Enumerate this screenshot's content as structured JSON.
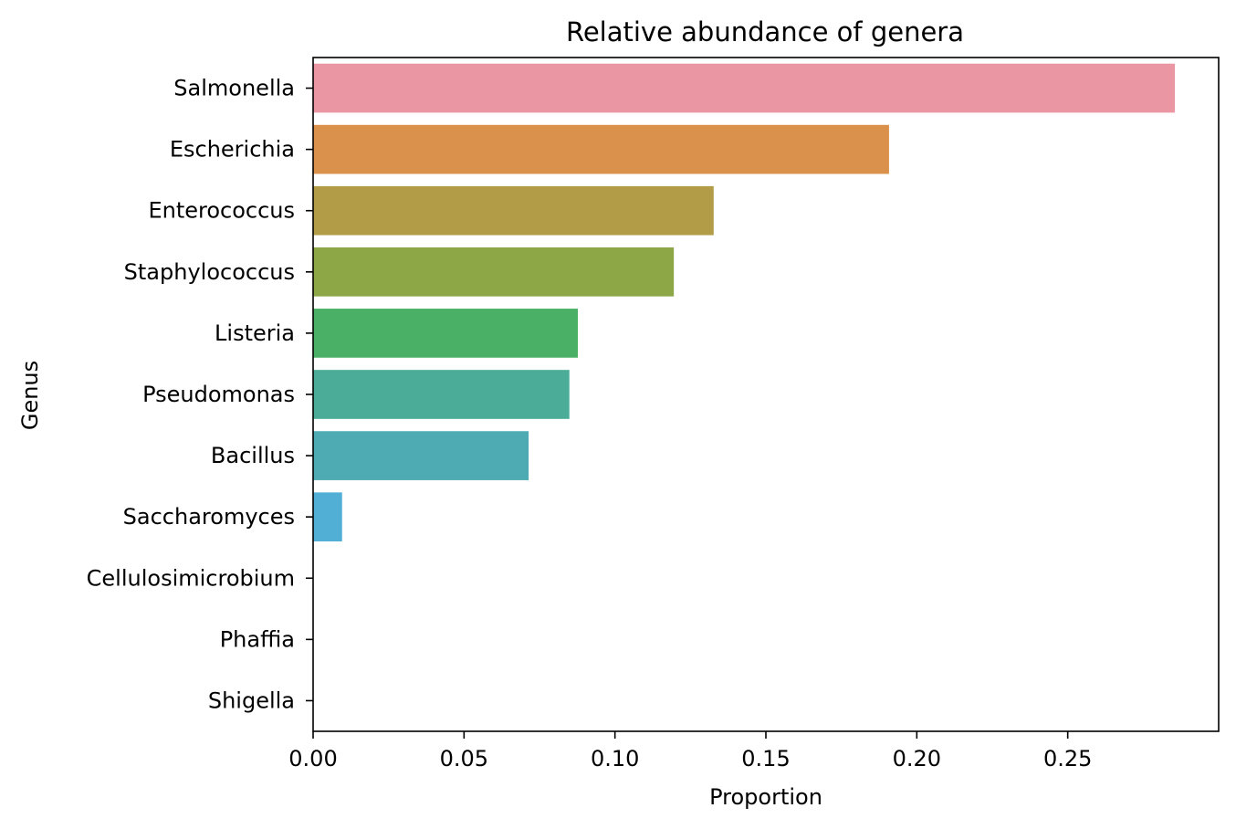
{
  "chart_data": {
    "type": "bar",
    "orientation": "horizontal",
    "title": "Relative abundance of genera",
    "xlabel": "Proportion",
    "ylabel": "Genus",
    "xlim": [
      0,
      0.3
    ],
    "xticks": [
      0.0,
      0.05,
      0.1,
      0.15,
      0.2,
      0.25
    ],
    "xtick_labels": [
      "0.00",
      "0.05",
      "0.10",
      "0.15",
      "0.20",
      "0.25"
    ],
    "grid": false,
    "legend": "none",
    "categories": [
      "Salmonella",
      "Escherichia",
      "Enterococcus",
      "Staphylococcus",
      "Listeria",
      "Pseudomonas",
      "Bacillus",
      "Saccharomyces",
      "Cellulosimicrobium",
      "Phaffia",
      "Shigella"
    ],
    "values": [
      0.2855,
      0.1908,
      0.1327,
      0.1195,
      0.0877,
      0.0849,
      0.0714,
      0.0096,
      0.0,
      0.0,
      0.0
    ],
    "colors": [
      "#ea96a3",
      "#da914c",
      "#b29c47",
      "#8ea746",
      "#49b065",
      "#4bac98",
      "#4eabb3",
      "#51aed5",
      "#9ab2e8",
      "#d6a2ec",
      "#ee93cf"
    ]
  }
}
